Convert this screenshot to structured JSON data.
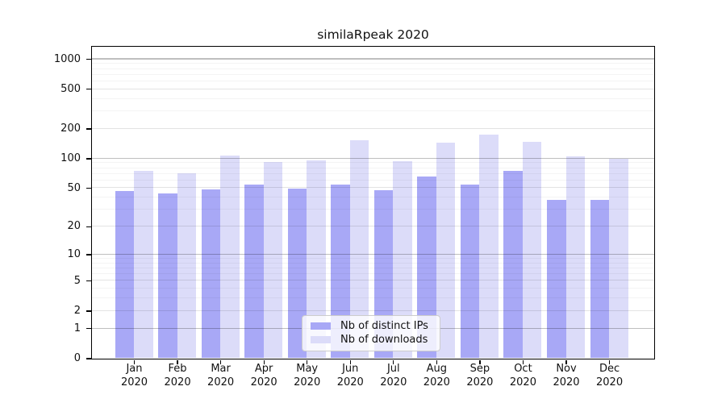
{
  "title": "similaRpeak 2020",
  "chart_data": {
    "type": "bar",
    "title": "similaRpeak 2020",
    "categories": [
      "Jan",
      "Feb",
      "Mar",
      "Apr",
      "May",
      "Jun",
      "Jul",
      "Aug",
      "Sep",
      "Oct",
      "Nov",
      "Dec"
    ],
    "category_year": "2020",
    "series": [
      {
        "name": "Nb of distinct IPs",
        "color": "#a8a8f6",
        "values": [
          46,
          44,
          48,
          54,
          49,
          54,
          47,
          65,
          54,
          74,
          38,
          38
        ]
      },
      {
        "name": "Nb of downloads",
        "color": "#dcdcf9",
        "values": [
          75,
          71,
          106,
          91,
          95,
          152,
          93,
          145,
          174,
          147,
          105,
          98
        ]
      }
    ],
    "y_axis": {
      "scale": "log10(1+x)",
      "ticks": [
        0,
        1,
        2,
        5,
        10,
        20,
        50,
        100,
        200,
        500,
        1000
      ],
      "minor_ticks": [
        3,
        4,
        6,
        7,
        8,
        9,
        30,
        40,
        60,
        70,
        80,
        90,
        300,
        400,
        600,
        700,
        800,
        900
      ],
      "emphasized_gridlines": [
        1,
        10,
        100,
        1000
      ],
      "ylim": [
        0,
        1300
      ]
    },
    "xlabel": "",
    "ylabel": "",
    "grid": true,
    "legend": {
      "position": "bottom-center",
      "entries": [
        "Nb of distinct IPs",
        "Nb of downloads"
      ]
    }
  },
  "colors": {
    "bar_distinct_ips": "#a8a8f6",
    "bar_downloads": "#dcdcf9",
    "gridline_decade": "#bdbdbd",
    "gridline_major": "#e3e3e3",
    "gridline_minor": "#f2f2f2",
    "spine": "#000000",
    "legend_border": "#cccccc"
  }
}
